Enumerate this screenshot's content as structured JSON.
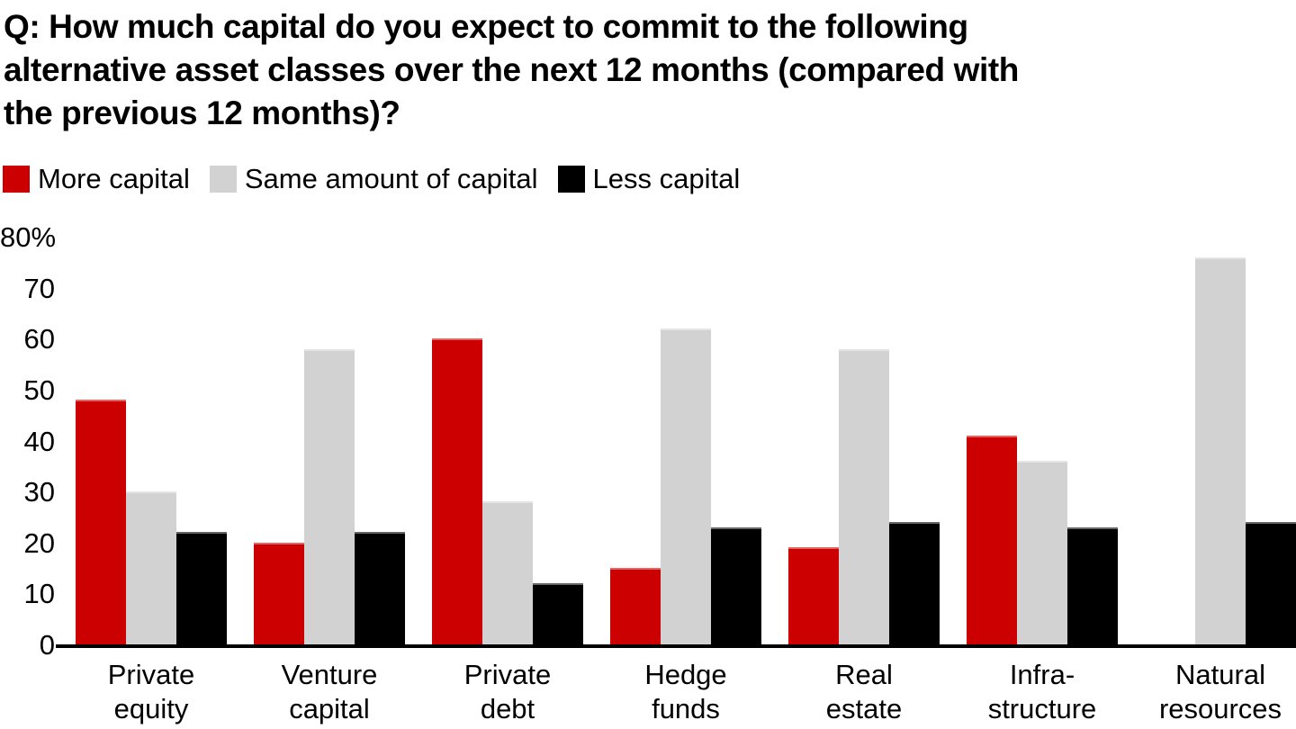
{
  "title_lines": [
    "Q: How much capital do you expect to commit to the following",
    "alternative asset classes over the next 12 months (compared with",
    "the previous 12 months)?"
  ],
  "legend": [
    {
      "label": "More capital",
      "color": "#CC0000"
    },
    {
      "label": "Same amount of capital",
      "color": "#D2D2D2"
    },
    {
      "label": "Less capital",
      "color": "#000000"
    }
  ],
  "chart_data": {
    "type": "bar",
    "title": "Q: How much capital do you expect to commit to the following alternative asset classes over the next 12 months (compared with the previous 12 months)?",
    "categories": [
      "Private equity",
      "Venture capital",
      "Private debt",
      "Hedge funds",
      "Real estate",
      "Infra-structure",
      "Natural resources"
    ],
    "category_label_lines": [
      [
        "Private",
        "equity"
      ],
      [
        "Venture",
        "capital"
      ],
      [
        "Private",
        "debt"
      ],
      [
        "Hedge",
        "funds"
      ],
      [
        "Real",
        "estate"
      ],
      [
        "Infra-",
        "structure"
      ],
      [
        "Natural",
        "resources"
      ]
    ],
    "series": [
      {
        "name": "More capital",
        "color": "#CC0000",
        "values": [
          48,
          20,
          60,
          15,
          19,
          41,
          0
        ]
      },
      {
        "name": "Same amount of capital",
        "color": "#D2D2D2",
        "values": [
          30,
          58,
          28,
          62,
          58,
          36,
          76
        ]
      },
      {
        "name": "Less capital",
        "color": "#000000",
        "values": [
          22,
          22,
          12,
          23,
          24,
          23,
          24
        ]
      }
    ],
    "xlabel": "",
    "ylabel": "",
    "ylim": [
      0,
      80
    ],
    "yticks": [
      "80%",
      "70",
      "60",
      "50",
      "40",
      "30",
      "20",
      "10",
      "0"
    ],
    "grid": false,
    "legend_position": "top-left",
    "axis_color": "#000000"
  }
}
